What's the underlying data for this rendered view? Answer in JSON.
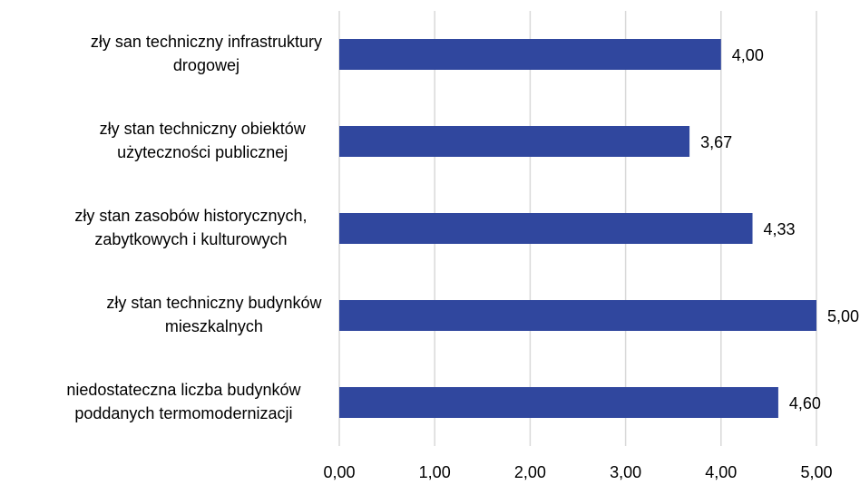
{
  "chart_data": {
    "type": "bar",
    "orientation": "horizontal",
    "categories": [
      "zły san techniczny infrastruktury\ndrogowej",
      "zły stan techniczny obiektów\nużyteczności publicznej",
      "zły stan zasobów historycznych,\nzabytkowych i kulturowych",
      "zły stan techniczny budynków\nmieszkalnych",
      "niedostateczna liczba budynków\npoddanych termomodernizacji"
    ],
    "values": [
      4.0,
      3.67,
      4.33,
      5.0,
      4.6
    ],
    "value_labels": [
      "4,00",
      "3,67",
      "4,33",
      "5,00",
      "4,60"
    ],
    "color": "#30479e",
    "xlim": [
      0,
      5
    ],
    "xticks": [
      {
        "value": 0,
        "label": "0,00"
      },
      {
        "value": 1,
        "label": "1,00"
      },
      {
        "value": 2,
        "label": "2,00"
      },
      {
        "value": 3,
        "label": "3,00"
      },
      {
        "value": 4,
        "label": "4,00"
      },
      {
        "value": 5,
        "label": "5,00"
      }
    ],
    "grid": true
  }
}
